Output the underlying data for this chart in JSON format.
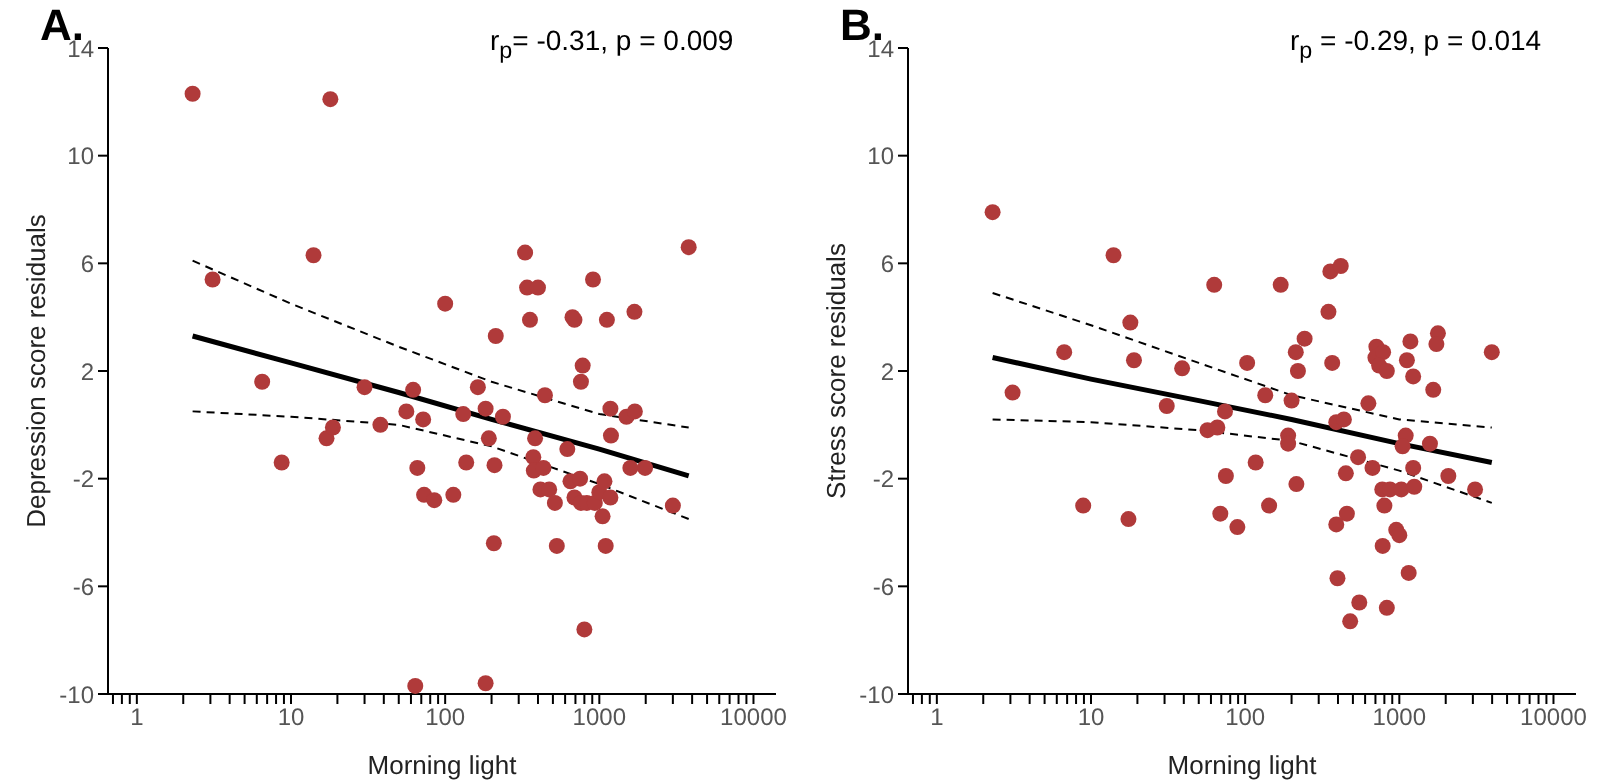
{
  "chart_data": [
    {
      "type": "scatter",
      "title": "A.",
      "xlabel": "Morning light",
      "ylabel": "Depression score residuals",
      "annotations": [
        "r$_{p}$= -0.31, p = 0.009"
      ],
      "log": "x",
      "grid": false,
      "legend": false,
      "marker": "circle",
      "xlim": [
        0.65,
        14000
      ],
      "xticks": [
        {
          "value": 0.7,
          "label": null
        },
        {
          "value": 0.8,
          "label": null
        },
        {
          "value": 0.9,
          "label": null
        },
        1,
        {
          "value": 2,
          "label": null
        },
        {
          "value": 3,
          "label": null
        },
        {
          "value": 4,
          "label": null
        },
        {
          "value": 5,
          "label": null
        },
        {
          "value": 6,
          "label": null
        },
        {
          "value": 7,
          "label": null
        },
        {
          "value": 8,
          "label": null
        },
        {
          "value": 9,
          "label": null
        },
        10,
        {
          "value": 20,
          "label": null
        },
        {
          "value": 30,
          "label": null
        },
        {
          "value": 40,
          "label": null
        },
        {
          "value": 50,
          "label": null
        },
        {
          "value": 60,
          "label": null
        },
        {
          "value": 70,
          "label": null
        },
        {
          "value": 80,
          "label": null
        },
        {
          "value": 90,
          "label": null
        },
        100,
        {
          "value": 200,
          "label": null
        },
        {
          "value": 300,
          "label": null
        },
        {
          "value": 400,
          "label": null
        },
        {
          "value": 500,
          "label": null
        },
        {
          "value": 600,
          "label": null
        },
        {
          "value": 700,
          "label": null
        },
        {
          "value": 800,
          "label": null
        },
        {
          "value": 900,
          "label": null
        },
        1000,
        {
          "value": 2000,
          "label": null
        },
        {
          "value": 3000,
          "label": null
        },
        {
          "value": 4000,
          "label": null
        },
        {
          "value": 5000,
          "label": null
        },
        {
          "value": 6000,
          "label": null
        },
        {
          "value": 7000,
          "label": null
        },
        {
          "value": 8000,
          "label": null
        },
        {
          "value": 9000,
          "label": null
        },
        10000
      ],
      "ylim": [
        -10,
        14
      ],
      "yticks": [
        -10,
        -6,
        -2,
        2,
        6,
        10,
        14
      ],
      "series": [
        {
          "color": "#b03a3a",
          "x": [
            2.3,
            18,
            3.1,
            14,
            100,
            213,
            330,
            340,
            400,
            355,
            670,
            690,
            910,
            1120,
            1690,
            3800,
            780,
            760,
            163,
            62,
            30,
            444,
            6.5,
            8.7,
            17,
            18.7,
            38,
            56,
            72,
            66,
            73,
            85,
            113,
            137,
            131,
            183,
            192,
            209,
            237,
            207,
            64,
            183,
            530,
            383,
            373,
            376,
            434,
            415,
            473,
            515,
            620,
            650,
            690,
            750,
            760,
            800,
            830,
            935,
            1000,
            1080,
            1050,
            1100,
            1180,
            1190,
            1180,
            1500,
            1700,
            1590,
            1980,
            3000
          ],
          "values": [
            12.3,
            12.1,
            5.4,
            6.3,
            4.5,
            3.3,
            6.4,
            5.1,
            5.1,
            3.9,
            4,
            3.9,
            5.4,
            3.9,
            4.2,
            6.6,
            2.2,
            1.6,
            1.4,
            1.3,
            1.4,
            1.1,
            1.6,
            -1.4,
            -0.5,
            -0.1,
            0,
            0.5,
            0.2,
            -1.6,
            -2.6,
            -2.8,
            -2.6,
            -1.4,
            0.4,
            0.6,
            -0.5,
            -1.5,
            0.3,
            -4.4,
            -9.7,
            -9.6,
            -4.5,
            -0.5,
            -1.2,
            -1.7,
            -1.6,
            -2.4,
            -2.4,
            -2.9,
            -0.9,
            -2.1,
            -2.7,
            -2,
            -2.9,
            -7.6,
            -2.9,
            -2.9,
            -2.5,
            -2.1,
            -3.4,
            -4.5,
            -2.7,
            -0.4,
            0.6,
            0.3,
            0.5,
            -1.6,
            -1.6,
            -3
          ]
        },
        {
          "type": "line",
          "color": "#000000",
          "marker": "none",
          "line_style": "solid",
          "x": [
            2.3,
            10,
            50,
            200,
            1000,
            3800
          ],
          "values": [
            3.3,
            2.3,
            1.2,
            0.2,
            -0.9,
            -1.9
          ]
        },
        {
          "type": "line",
          "color": "#000000",
          "marker": "none",
          "line_style": "dashed",
          "x": [
            2.3,
            10,
            50,
            200,
            1000,
            3800
          ],
          "values": [
            0.5,
            0.3,
            0,
            -0.8,
            -2.2,
            -3.5
          ]
        },
        {
          "type": "line",
          "color": "#000000",
          "marker": "none",
          "line_style": "dashed",
          "x": [
            2.3,
            10,
            50,
            200,
            1000,
            3800
          ],
          "values": [
            6.1,
            4.5,
            2.9,
            1.6,
            0.4,
            -0.1
          ]
        }
      ]
    },
    {
      "type": "scatter",
      "title": "B.",
      "xlabel": "Morning light",
      "ylabel": "Stress score residuals",
      "annotations": [
        "r$_{p}$ = -0.29, p = 0.014"
      ],
      "log": "x",
      "grid": false,
      "legend": false,
      "marker": "circle",
      "xlim": [
        0.65,
        14000
      ],
      "xticks": [
        {
          "value": 0.7,
          "label": null
        },
        {
          "value": 0.8,
          "label": null
        },
        {
          "value": 0.9,
          "label": null
        },
        1,
        {
          "value": 2,
          "label": null
        },
        {
          "value": 3,
          "label": null
        },
        {
          "value": 4,
          "label": null
        },
        {
          "value": 5,
          "label": null
        },
        {
          "value": 6,
          "label": null
        },
        {
          "value": 7,
          "label": null
        },
        {
          "value": 8,
          "label": null
        },
        {
          "value": 9,
          "label": null
        },
        10,
        {
          "value": 20,
          "label": null
        },
        {
          "value": 30,
          "label": null
        },
        {
          "value": 40,
          "label": null
        },
        {
          "value": 50,
          "label": null
        },
        {
          "value": 60,
          "label": null
        },
        {
          "value": 70,
          "label": null
        },
        {
          "value": 80,
          "label": null
        },
        {
          "value": 90,
          "label": null
        },
        100,
        {
          "value": 200,
          "label": null
        },
        {
          "value": 300,
          "label": null
        },
        {
          "value": 400,
          "label": null
        },
        {
          "value": 500,
          "label": null
        },
        {
          "value": 600,
          "label": null
        },
        {
          "value": 700,
          "label": null
        },
        {
          "value": 800,
          "label": null
        },
        {
          "value": 900,
          "label": null
        },
        1000,
        {
          "value": 2000,
          "label": null
        },
        {
          "value": 3000,
          "label": null
        },
        {
          "value": 4000,
          "label": null
        },
        {
          "value": 5000,
          "label": null
        },
        {
          "value": 6000,
          "label": null
        },
        {
          "value": 7000,
          "label": null
        },
        {
          "value": 8000,
          "label": null
        },
        {
          "value": 9000,
          "label": null
        },
        10000
      ],
      "ylim": [
        -10,
        14
      ],
      "yticks": [
        -10,
        -6,
        -2,
        2,
        6,
        10,
        14
      ],
      "series": [
        {
          "color": "#b03a3a",
          "x": [
            2.3,
            14,
            18,
            6.7,
            19,
            39,
            63,
            103,
            170,
            213,
            220,
            243,
            347,
            357,
            417,
            367,
            710,
            700,
            785,
            740,
            830,
            1180,
            1120,
            1230,
            1780,
            1740,
            1660,
            3980,
            3.1,
            135,
            31,
            200,
            630,
            74,
            390,
            437,
            57,
            66,
            190,
            190,
            1100,
            1050,
            1580,
            117,
            540,
            670,
            75,
            450,
            1230,
            2080,
            215,
            775,
            870,
            1030,
            1250,
            3100,
            8.9,
            17.5,
            69,
            143,
            89,
            800,
            457,
            390,
            955,
            1000,
            780,
            397,
            1150,
            550,
            830,
            480
          ],
          "values": [
            7.9,
            6.3,
            3.8,
            2.7,
            2.4,
            2.1,
            5.2,
            2.3,
            5.2,
            2.7,
            2,
            3.2,
            4.2,
            5.7,
            5.9,
            2.3,
            2.9,
            2.5,
            2.7,
            2.2,
            2,
            3.1,
            2.4,
            1.8,
            3.4,
            3,
            1.3,
            2.7,
            1.2,
            1.1,
            0.7,
            0.9,
            0.8,
            0.5,
            0.1,
            0.2,
            -0.2,
            -0.1,
            -0.4,
            -0.7,
            -0.4,
            -0.8,
            -0.7,
            -1.4,
            -1.2,
            -1.6,
            -1.9,
            -1.8,
            -1.6,
            -1.9,
            -2.2,
            -2.4,
            -2.4,
            -2.4,
            -2.3,
            -2.4,
            -3,
            -3.5,
            -3.3,
            -3,
            -3.8,
            -3,
            -3.3,
            -3.7,
            -3.9,
            -4.1,
            -4.5,
            -5.7,
            -5.5,
            -6.6,
            -6.8,
            -7.3
          ]
        },
        {
          "type": "line",
          "color": "#000000",
          "marker": "none",
          "line_style": "solid",
          "x": [
            2.3,
            10,
            50,
            200,
            1000,
            3980
          ],
          "values": [
            2.5,
            1.7,
            0.9,
            0.2,
            -0.7,
            -1.4
          ]
        },
        {
          "type": "line",
          "color": "#000000",
          "marker": "none",
          "line_style": "dashed",
          "x": [
            2.3,
            10,
            50,
            200,
            1000,
            3980
          ],
          "values": [
            0.2,
            0.1,
            -0.2,
            -0.6,
            -1.7,
            -2.9
          ]
        },
        {
          "type": "line",
          "color": "#000000",
          "marker": "none",
          "line_style": "dashed",
          "x": [
            2.3,
            10,
            50,
            200,
            1000,
            3980
          ],
          "values": [
            4.9,
            3.7,
            2.3,
            1.1,
            0.2,
            -0.1
          ]
        }
      ]
    }
  ]
}
